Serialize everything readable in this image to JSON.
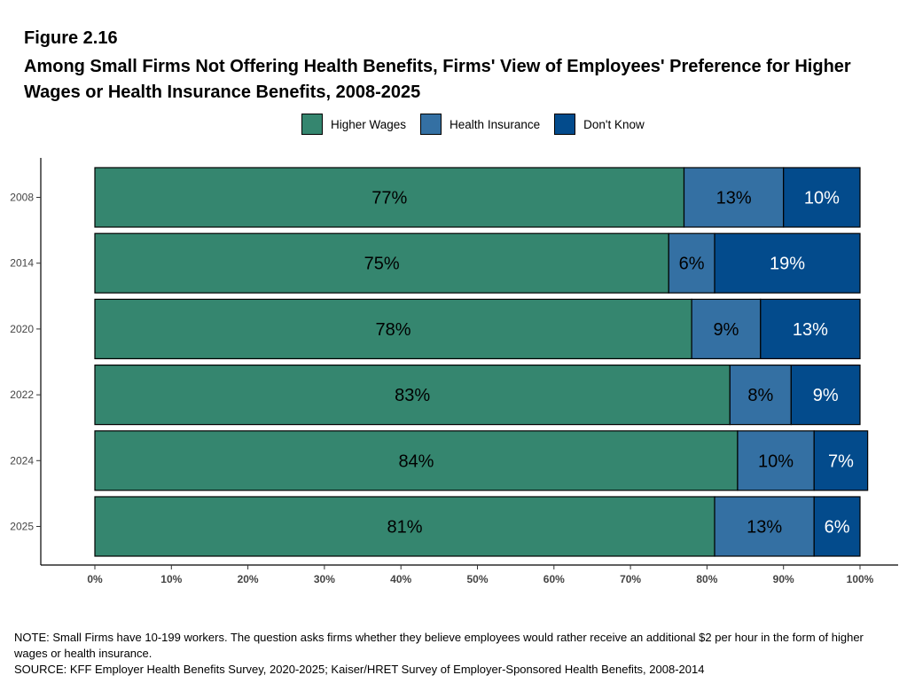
{
  "figure_label": "Figure 2.16",
  "title": "Among Small Firms Not Offering Health Benefits, Firms' View of Employees' Preference for Higher Wages or Health Insurance Benefits, 2008-2025",
  "note": "NOTE: Small Firms have 10-199 workers. The question asks firms whether they believe employees would rather receive an additional $2 per hour in the form of higher wages or health insurance.",
  "source": "SOURCE: KFF Employer Health Benefits Survey, 2020-2025; Kaiser/HRET Survey of Employer-Sponsored Health Benefits, 2008-2014",
  "chart_data": {
    "type": "bar",
    "orientation": "horizontal",
    "stacked": true,
    "categories": [
      "2008",
      "2014",
      "2020",
      "2022",
      "2024",
      "2025"
    ],
    "series": [
      {
        "name": "Higher Wages",
        "color": "#35866f",
        "label_color": "#000000",
        "values": [
          77,
          75,
          78,
          83,
          84,
          81
        ],
        "labels": [
          "77%",
          "75%",
          "78%",
          "83%",
          "84%",
          "81%"
        ]
      },
      {
        "name": "Health Insurance",
        "color": "#3470a3",
        "label_color": "#000000",
        "values": [
          13,
          6,
          9,
          8,
          10,
          13
        ],
        "labels": [
          "13%",
          "6%",
          "9%",
          "8%",
          "10%",
          "13%"
        ]
      },
      {
        "name": "Don't Know",
        "color": "#034b8c",
        "label_color": "#ffffff",
        "values": [
          10,
          19,
          13,
          9,
          7,
          6
        ],
        "labels": [
          "10%",
          "19%",
          "13%",
          "9%",
          "7%",
          "6%"
        ]
      }
    ],
    "xlim": [
      0,
      100
    ],
    "x_ticks": [
      "0%",
      "10%",
      "20%",
      "30%",
      "40%",
      "50%",
      "60%",
      "70%",
      "80%",
      "90%",
      "100%"
    ],
    "legend_position": "top",
    "grid": false
  }
}
